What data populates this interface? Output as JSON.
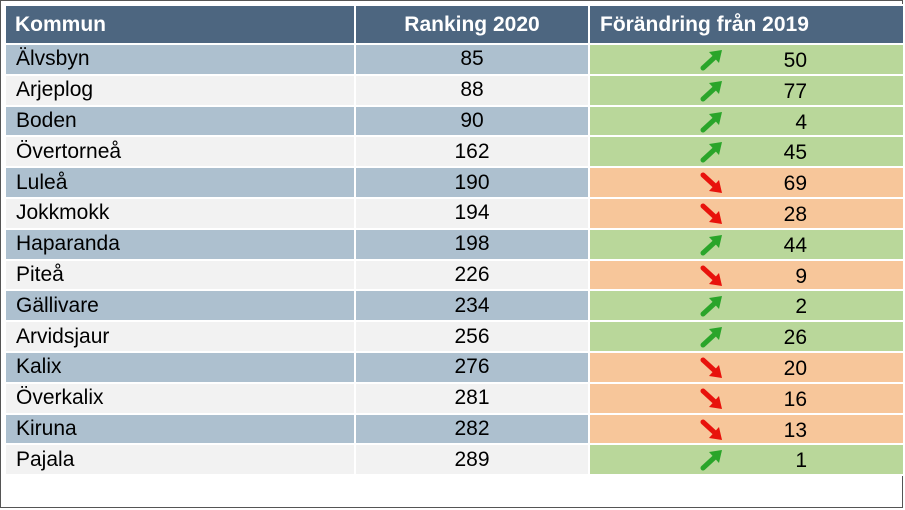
{
  "table": {
    "headers": [
      "Kommun",
      "Ranking 2020",
      "Förändring från 2019"
    ],
    "colors": {
      "up": "#2aa52a",
      "down": "#e8120c",
      "up_bg": "#b9d79a",
      "down_bg": "#f7c69a"
    },
    "rows": [
      {
        "kommun": "Älvsbyn",
        "ranking": "85",
        "change": "50",
        "direction": "up"
      },
      {
        "kommun": "Arjeplog",
        "ranking": "88",
        "change": "77",
        "direction": "up"
      },
      {
        "kommun": "Boden",
        "ranking": "90",
        "change": "4",
        "direction": "up"
      },
      {
        "kommun": "Övertorneå",
        "ranking": "162",
        "change": "45",
        "direction": "up"
      },
      {
        "kommun": "Luleå",
        "ranking": "190",
        "change": "69",
        "direction": "down"
      },
      {
        "kommun": "Jokkmokk",
        "ranking": "194",
        "change": "28",
        "direction": "down"
      },
      {
        "kommun": "Haparanda",
        "ranking": "198",
        "change": "44",
        "direction": "up"
      },
      {
        "kommun": "Piteå",
        "ranking": "226",
        "change": "9",
        "direction": "down"
      },
      {
        "kommun": "Gällivare",
        "ranking": "234",
        "change": "2",
        "direction": "up"
      },
      {
        "kommun": "Arvidsjaur",
        "ranking": "256",
        "change": "26",
        "direction": "up"
      },
      {
        "kommun": "Kalix",
        "ranking": "276",
        "change": "20",
        "direction": "down"
      },
      {
        "kommun": "Överkalix",
        "ranking": "281",
        "change": "16",
        "direction": "down"
      },
      {
        "kommun": "Kiruna",
        "ranking": "282",
        "change": "13",
        "direction": "down"
      },
      {
        "kommun": "Pajala",
        "ranking": "289",
        "change": "1",
        "direction": "up"
      }
    ]
  }
}
